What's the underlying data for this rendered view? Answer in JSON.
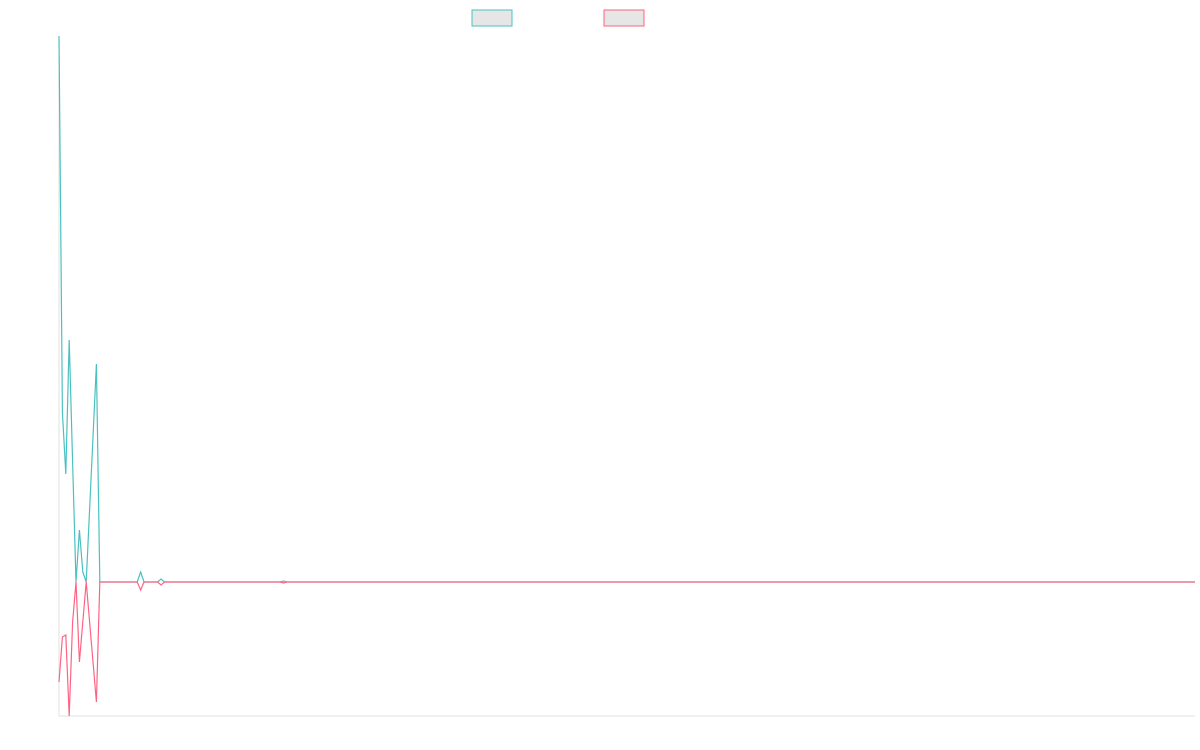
{
  "chart_data": {
    "type": "line",
    "x": [
      0,
      1,
      2,
      3,
      4,
      5,
      6,
      7,
      8,
      11,
      12,
      23,
      24,
      25,
      29,
      30,
      31,
      65,
      66,
      67,
      334
    ],
    "series": [
      {
        "color": "#4bc0c0",
        "values": [
          546,
          170,
          108,
          242,
          120,
          0,
          52,
          10,
          0,
          218,
          0,
          0,
          10,
          0,
          0,
          3,
          0,
          0,
          1,
          0,
          0
        ]
      },
      {
        "color": "#ff6384",
        "values": [
          -100,
          -55,
          -53,
          -134,
          -40,
          0,
          -80,
          -40,
          0,
          -120,
          0,
          0,
          -8,
          0,
          0,
          -3,
          0,
          0,
          -1,
          0,
          0
        ]
      }
    ],
    "xlim": [
      0,
      334
    ],
    "ylim": [
      -134,
      546
    ]
  }
}
